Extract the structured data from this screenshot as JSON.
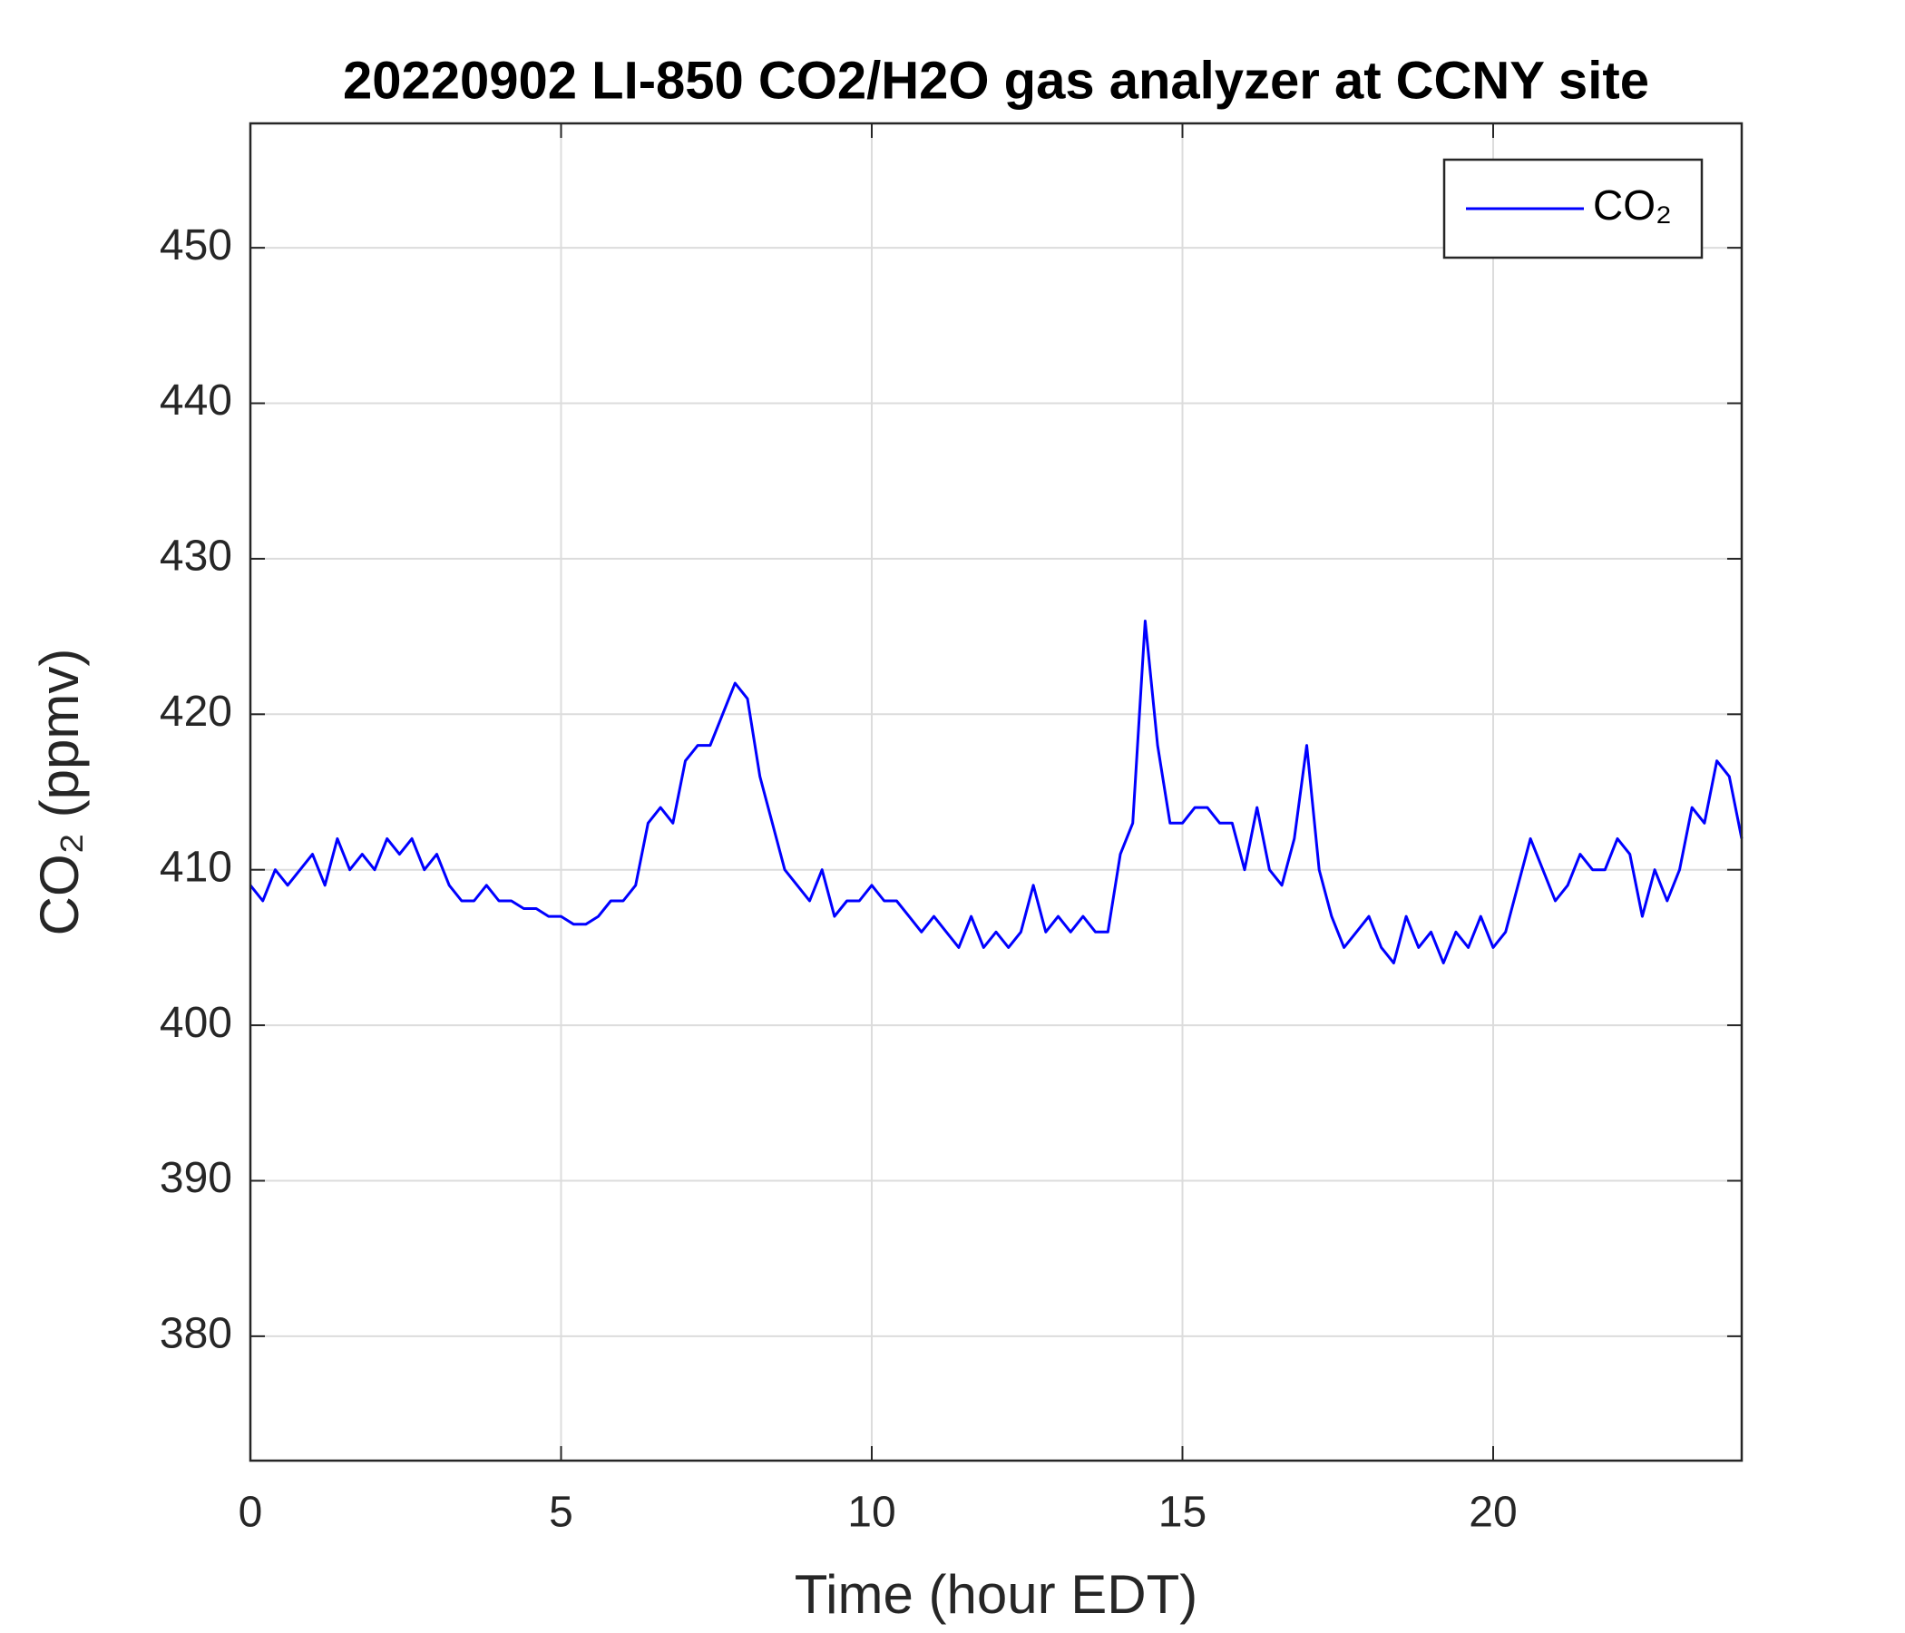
{
  "chart_data": {
    "type": "line",
    "title": "20220902 LI-850 CO2/H2O gas analyzer at CCNY site",
    "x_label": "Time (hour EDT)",
    "y_label": "CO₂ (ppmv)",
    "xlim": [
      0,
      24
    ],
    "ylim": [
      372,
      458
    ],
    "xticks": [
      0,
      5,
      10,
      15,
      20
    ],
    "yticks": [
      380,
      390,
      400,
      410,
      420,
      430,
      440,
      450
    ],
    "grid": true,
    "legend": "upper right",
    "x": [
      0,
      0.2,
      0.4,
      0.6,
      0.8,
      1,
      1.2,
      1.4,
      1.6,
      1.8,
      2,
      2.2,
      2.4,
      2.6,
      2.8,
      3,
      3.2,
      3.4,
      3.6,
      3.8,
      4,
      4.2,
      4.4,
      4.6,
      4.8,
      5,
      5.2,
      5.4,
      5.6,
      5.8,
      6,
      6.2,
      6.4,
      6.6,
      6.8,
      7,
      7.2,
      7.4,
      7.6,
      7.8,
      8,
      8.2,
      8.4,
      8.6,
      8.8,
      9,
      9.2,
      9.4,
      9.6,
      9.8,
      10,
      10.2,
      10.4,
      10.6,
      10.8,
      11,
      11.2,
      11.4,
      11.6,
      11.8,
      12,
      12.2,
      12.4,
      12.6,
      12.8,
      13,
      13.2,
      13.4,
      13.6,
      13.8,
      14,
      14.2,
      14.4,
      14.6,
      14.8,
      15,
      15.2,
      15.4,
      15.6,
      15.8,
      16,
      16.2,
      16.4,
      16.6,
      16.8,
      17,
      17.2,
      17.4,
      17.6,
      17.8,
      18,
      18.2,
      18.4,
      18.6,
      18.8,
      19,
      19.2,
      19.4,
      19.6,
      19.8,
      20,
      20.2,
      20.4,
      20.6,
      20.8,
      21,
      21.2,
      21.4,
      21.6,
      21.8,
      22,
      22.2,
      22.4,
      22.6,
      22.8,
      23,
      23.2,
      23.4,
      23.6,
      23.8,
      24
    ],
    "series": [
      {
        "name": "CO₂",
        "color": "#0000ff",
        "values": [
          409,
          408,
          410,
          409,
          410,
          411,
          409,
          412,
          410,
          411,
          410,
          412,
          411,
          412,
          410,
          411,
          409,
          408,
          408,
          409,
          408,
          408,
          407.5,
          407.5,
          407,
          407,
          406.5,
          406.5,
          407,
          408,
          408,
          409,
          413,
          414,
          413,
          417,
          418,
          418,
          420,
          422,
          421,
          416,
          413,
          410,
          409,
          408,
          410,
          407,
          408,
          408,
          409,
          408,
          408,
          407,
          406,
          407,
          406,
          405,
          407,
          405,
          406,
          405,
          406,
          409,
          406,
          407,
          406,
          407,
          406,
          406,
          411,
          413,
          426,
          418,
          413,
          413,
          414,
          414,
          413,
          413,
          410,
          414,
          410,
          409,
          412,
          418,
          410,
          407,
          405,
          406,
          407,
          405,
          404,
          407,
          405,
          406,
          404,
          406,
          405,
          407,
          405,
          406,
          409,
          412,
          410,
          408,
          409,
          411,
          410,
          410,
          412,
          411,
          407,
          410,
          408,
          410,
          414,
          413,
          417,
          416,
          412
        ]
      }
    ]
  }
}
